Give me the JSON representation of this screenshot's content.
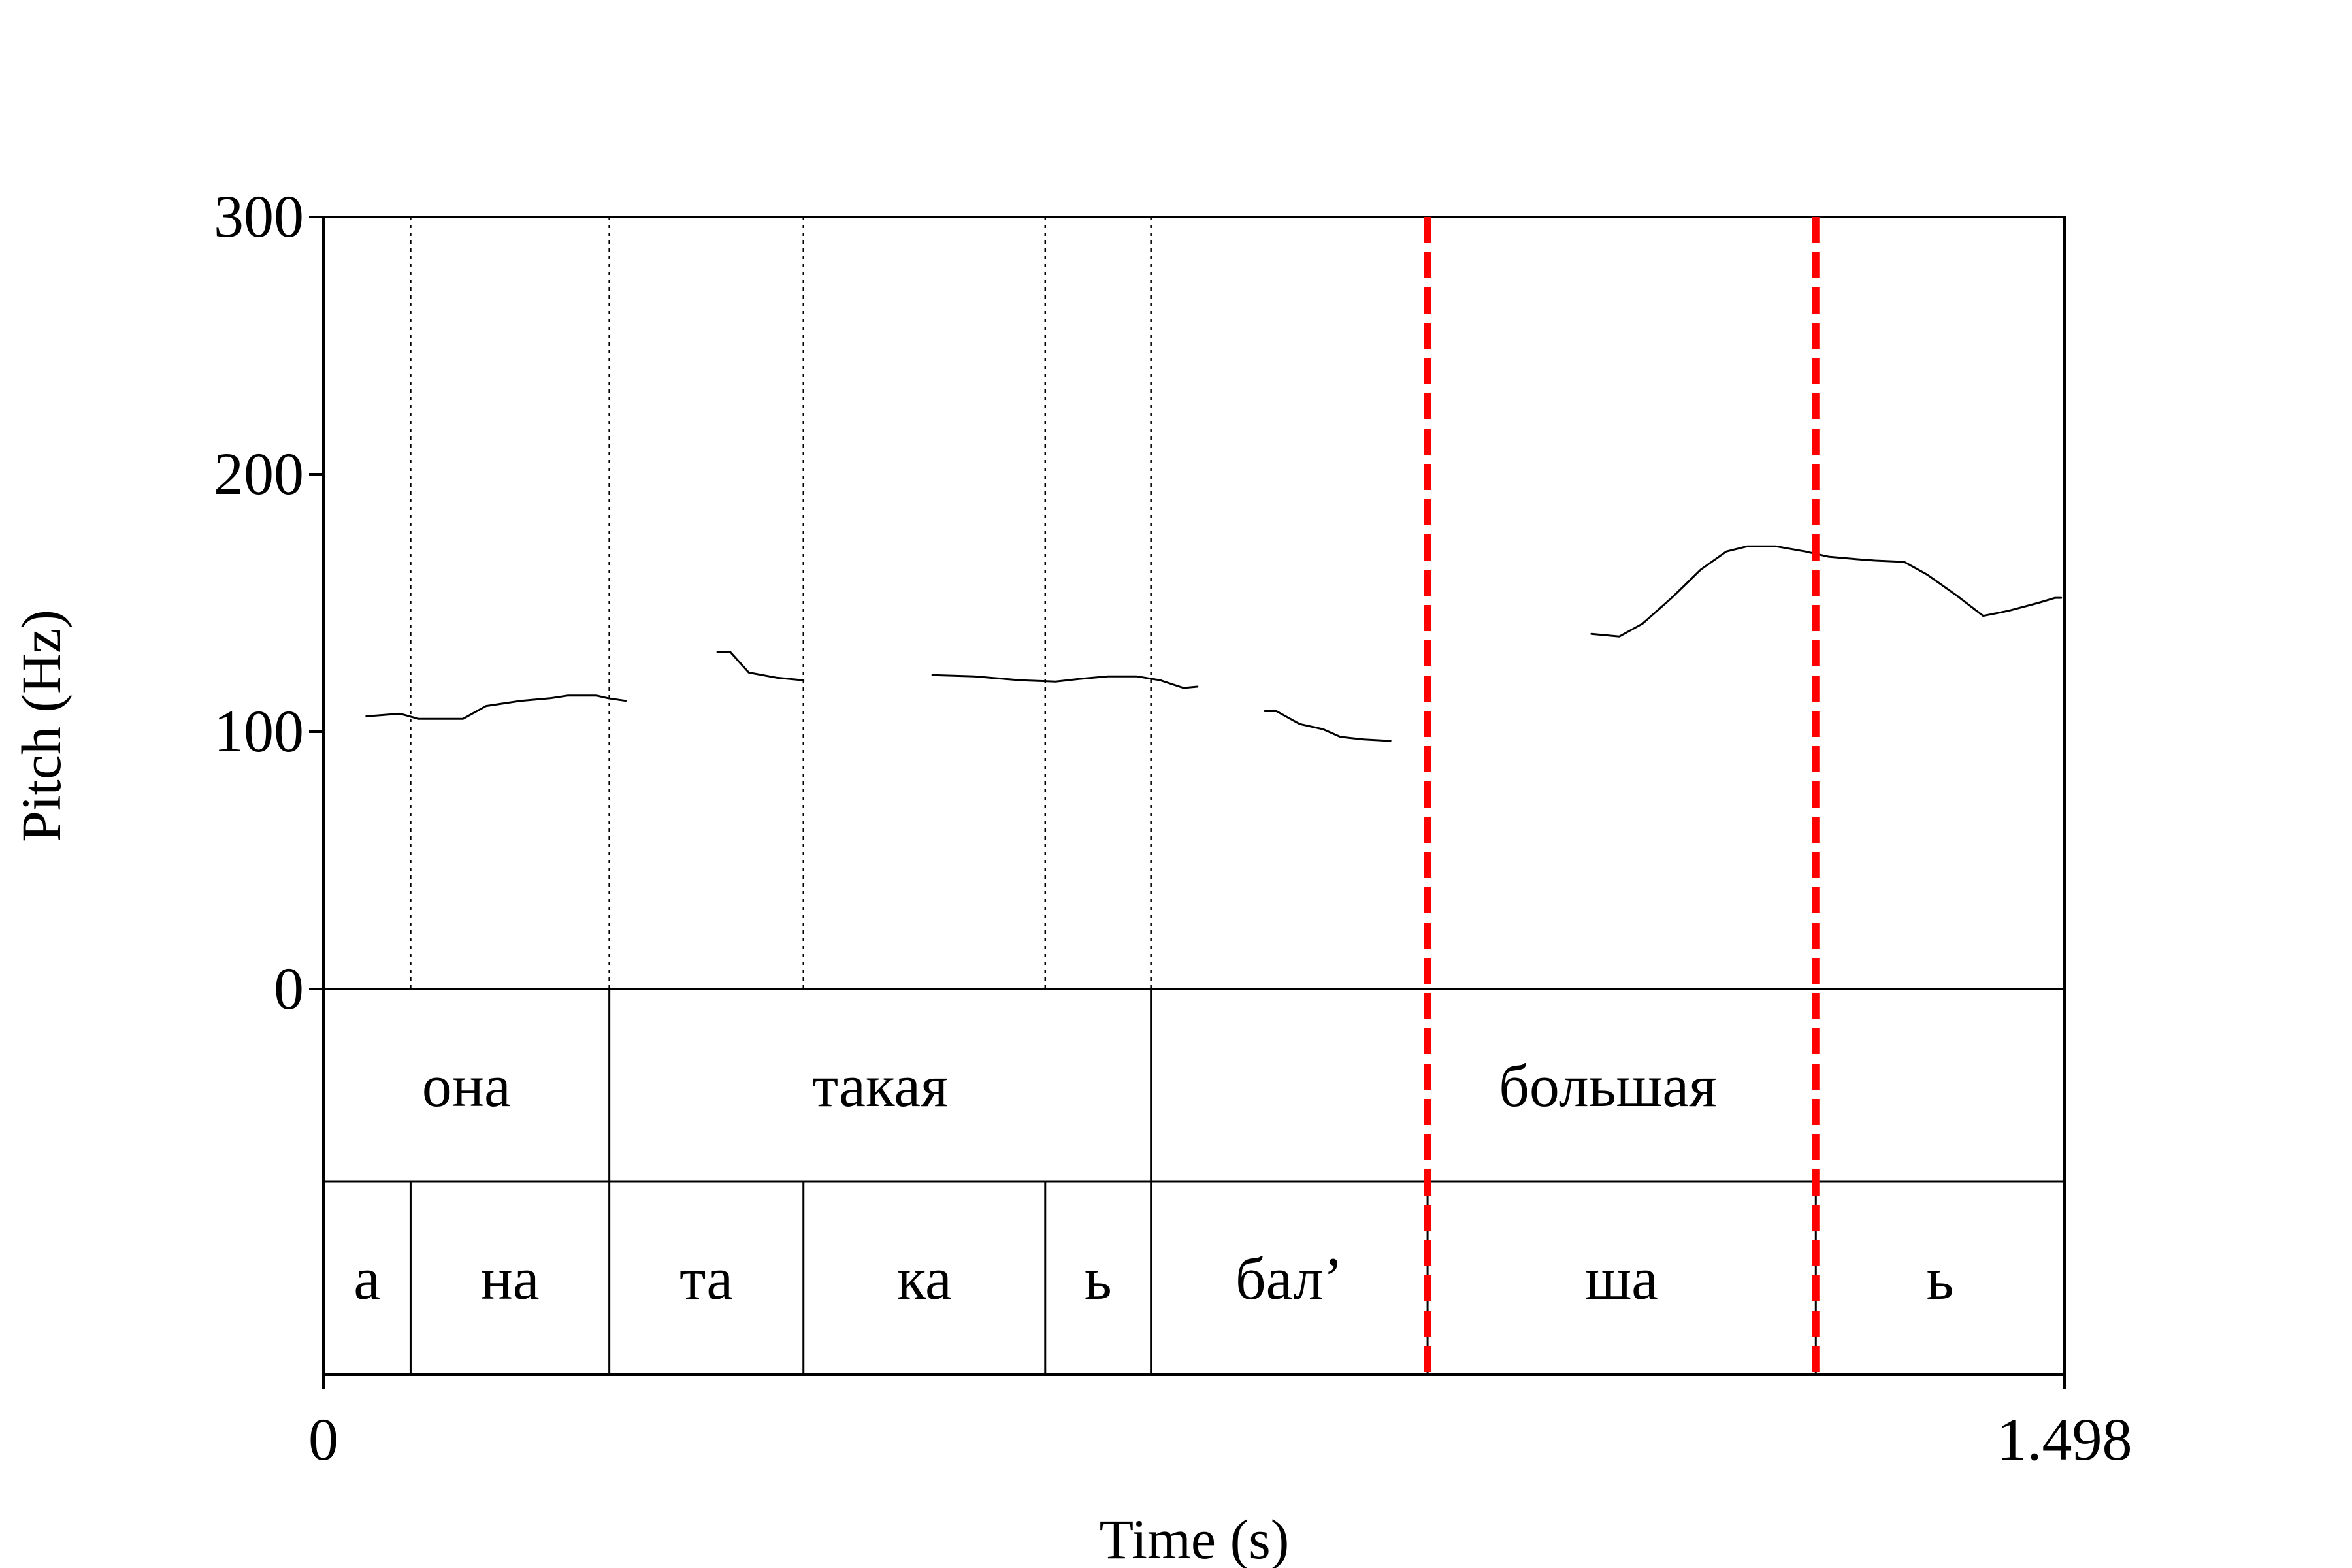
{
  "chart_data": {
    "type": "line",
    "xlabel": "Time (s)",
    "ylabel": "Pitch (Hz)",
    "xlim": [
      0,
      1.498
    ],
    "ylim": [
      0,
      300
    ],
    "x_tick_labels": [
      "0",
      "1.498"
    ],
    "y_tick_labels": [
      "0",
      "100",
      "200",
      "300"
    ],
    "y_ticks": [
      0,
      100,
      200,
      300
    ],
    "grid": false,
    "pitch_segments": [
      [
        [
          0.037,
          106
        ],
        [
          0.066,
          107
        ],
        [
          0.082,
          105
        ],
        [
          0.12,
          105
        ],
        [
          0.14,
          110
        ],
        [
          0.17,
          112
        ],
        [
          0.195,
          113
        ],
        [
          0.21,
          114
        ],
        [
          0.235,
          114
        ],
        [
          0.26,
          112
        ],
        [
          0.245,
          113
        ]
      ],
      [
        [
          0.339,
          131
        ],
        [
          0.35,
          131
        ],
        [
          0.366,
          123
        ],
        [
          0.39,
          121
        ],
        [
          0.413,
          120
        ]
      ],
      [
        [
          0.524,
          122
        ],
        [
          0.56,
          121.5
        ],
        [
          0.6,
          120
        ],
        [
          0.63,
          119.5
        ],
        [
          0.65,
          120.5
        ],
        [
          0.675,
          121.5
        ],
        [
          0.7,
          121.5
        ],
        [
          0.72,
          120
        ],
        [
          0.74,
          117
        ],
        [
          0.752,
          117.5
        ]
      ],
      [
        [
          0.81,
          108
        ],
        [
          0.82,
          108
        ],
        [
          0.84,
          103
        ],
        [
          0.86,
          101
        ],
        [
          0.875,
          98
        ],
        [
          0.895,
          97
        ],
        [
          0.915,
          96.5
        ],
        [
          0.918,
          96.5
        ]
      ],
      [
        [
          1.091,
          138
        ],
        [
          1.115,
          137
        ],
        [
          1.135,
          142
        ],
        [
          1.16,
          152
        ],
        [
          1.185,
          163
        ],
        [
          1.207,
          170
        ],
        [
          1.225,
          172
        ],
        [
          1.25,
          172
        ],
        [
          1.275,
          170
        ],
        [
          1.295,
          168
        ],
        [
          1.32,
          167
        ],
        [
          1.335,
          166.5
        ],
        [
          1.36,
          166
        ],
        [
          1.38,
          161
        ],
        [
          1.405,
          153
        ],
        [
          1.428,
          145
        ],
        [
          1.45,
          147
        ],
        [
          1.475,
          150
        ],
        [
          1.49,
          152
        ],
        [
          1.495,
          152
        ]
      ]
    ],
    "pitch_segments_note": "",
    "word_tier": [
      {
        "label": "она",
        "start": 0,
        "end": 0.246
      },
      {
        "label": "такая",
        "start": 0.246,
        "end": 0.712
      },
      {
        "label": "большая",
        "start": 0.712,
        "end": 1.498
      }
    ],
    "syllable_tier": [
      {
        "label": "а",
        "start": 0,
        "end": 0.075
      },
      {
        "label": "на",
        "start": 0.075,
        "end": 0.246
      },
      {
        "label": "та",
        "start": 0.246,
        "end": 0.413
      },
      {
        "label": "ка",
        "start": 0.413,
        "end": 0.621
      },
      {
        "label": "ь",
        "start": 0.621,
        "end": 0.712
      },
      {
        "label": "бал’",
        "start": 0.712,
        "end": 0.95
      },
      {
        "label": "ша",
        "start": 0.95,
        "end": 1.284
      },
      {
        "label": "ь",
        "start": 1.284,
        "end": 1.498
      }
    ],
    "highlight_boundaries": [
      0.95,
      1.284
    ],
    "colors": {
      "line": "#000000",
      "highlight": "#ff0000"
    }
  }
}
